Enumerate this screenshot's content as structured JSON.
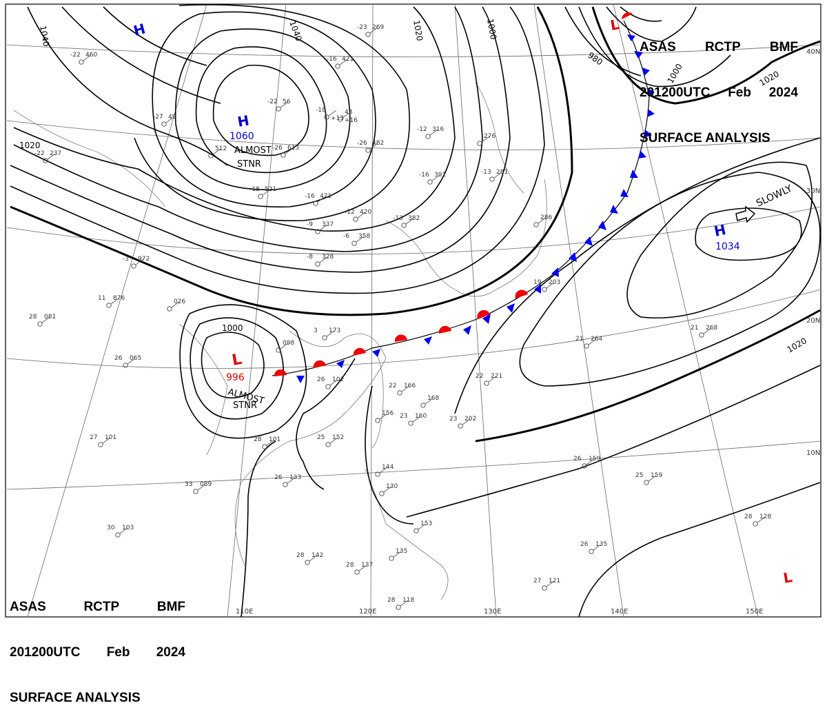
{
  "header": {
    "line1": [
      "ASAS",
      "RCTP",
      "BMF"
    ],
    "line2": [
      "201200UTC",
      "Feb",
      "2024"
    ],
    "line3": "SURFACE ANALYSIS"
  },
  "colors": {
    "isobar": "#000000",
    "high": "#0000cc",
    "low": "#dd0000",
    "cold_front": "#0000ee",
    "warm_front": "#ee0000",
    "grid": "#555555",
    "coast": "#888888"
  },
  "lon_labels": [
    "110E",
    "120E",
    "130E",
    "140E",
    "150E"
  ],
  "lat_labels": [
    "40N",
    "30N",
    "20N",
    "10N"
  ],
  "isobar_labels": [
    "1040",
    "1040",
    "1020",
    "1000",
    "980",
    "1000",
    "1020",
    "1020",
    "1020",
    "1000"
  ],
  "pressure_centers": [
    {
      "type": "H",
      "value": "",
      "note": ""
    },
    {
      "type": "H",
      "value": "1060",
      "note": "ALMOST STNR"
    },
    {
      "type": "L",
      "value": "996",
      "note": "ALMOST STNR"
    },
    {
      "type": "H",
      "value": "1034",
      "note": "SLOWLY"
    },
    {
      "type": "L",
      "value": "",
      "note": ""
    },
    {
      "type": "L",
      "value": "",
      "note": ""
    }
  ],
  "stations": [
    {
      "t": "-22",
      "p": "460"
    },
    {
      "t": "-23",
      "p": "269"
    },
    {
      "t": "-16",
      "p": "421"
    },
    {
      "t": "-22",
      "p": "56"
    },
    {
      "t": "-18",
      "p": "",
      "d": "+13"
    },
    {
      "t": "",
      "p": "43",
      "d": "+16"
    },
    {
      "t": "-27",
      "p": "49"
    },
    {
      "t": "-26",
      "p": "613"
    },
    {
      "t": "-26",
      "p": "482"
    },
    {
      "t": "-12",
      "p": "316"
    },
    {
      "t": "-22",
      "p": "237"
    },
    {
      "t": "",
      "p": "512"
    },
    {
      "t": "-18",
      "p": "521"
    },
    {
      "t": "-16",
      "p": "471"
    },
    {
      "t": "-16",
      "p": "391"
    },
    {
      "t": "-12",
      "p": "420"
    },
    {
      "t": "-13",
      "p": "382"
    },
    {
      "t": "-9",
      "p": "337"
    },
    {
      "t": "-6",
      "p": "358"
    },
    {
      "t": "-8",
      "p": "328"
    },
    {
      "t": "-3",
      "p": "972"
    },
    {
      "t": "11",
      "p": "876"
    },
    {
      "t": "",
      "p": "026"
    },
    {
      "t": "28",
      "p": "081"
    },
    {
      "t": "26",
      "p": "065"
    },
    {
      "t": "3",
      "p": "173"
    },
    {
      "t": "",
      "p": "098"
    },
    {
      "t": "26",
      "p": "102"
    },
    {
      "t": "22",
      "p": "166"
    },
    {
      "t": "",
      "p": "168"
    },
    {
      "t": "",
      "p": "156"
    },
    {
      "t": "23",
      "p": "160"
    },
    {
      "t": "23",
      "p": "202"
    },
    {
      "t": "22",
      "p": "221"
    },
    {
      "t": "27",
      "p": "101"
    },
    {
      "t": "28",
      "p": "101"
    },
    {
      "t": "25",
      "p": "152"
    },
    {
      "t": "26",
      "p": "133"
    },
    {
      "t": "33",
      "p": "089"
    },
    {
      "t": "30",
      "p": "103"
    },
    {
      "t": "28",
      "p": "142"
    },
    {
      "t": "28",
      "p": "137"
    },
    {
      "t": "",
      "p": "144"
    },
    {
      "t": "",
      "p": "130"
    },
    {
      "t": "",
      "p": "153"
    },
    {
      "t": "",
      "p": "135"
    },
    {
      "t": "28",
      "p": "118"
    },
    {
      "t": "21",
      "p": "264"
    },
    {
      "t": "21",
      "p": "268"
    },
    {
      "t": "26",
      "p": "159"
    },
    {
      "t": "25",
      "p": "159"
    },
    {
      "t": "28",
      "p": "128"
    },
    {
      "t": "26",
      "p": "135"
    },
    {
      "t": "27",
      "p": "121"
    },
    {
      "t": "19",
      "p": "203"
    },
    {
      "t": "",
      "p": "286"
    },
    {
      "t": "-13",
      "p": "281"
    },
    {
      "t": "",
      "p": "276"
    }
  ]
}
